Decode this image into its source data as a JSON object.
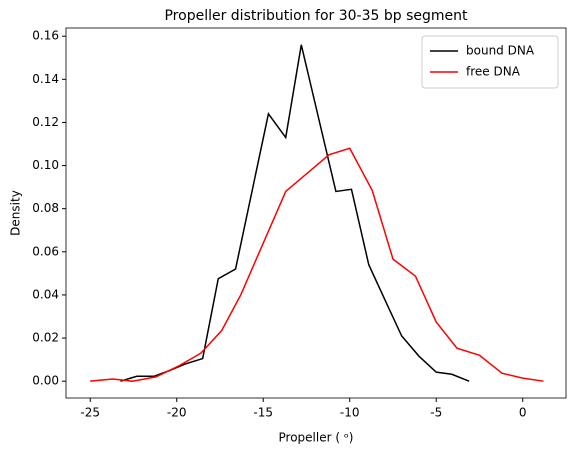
{
  "chart_data": {
    "type": "line",
    "title": "Propeller distribution for 30-35 bp segment",
    "xlabel": "Propeller ( ᵒ)",
    "ylabel": "Density",
    "xlim": [
      -26.4,
      2.5
    ],
    "ylim": [
      -0.0078,
      0.1638
    ],
    "xticks": [
      -25,
      -20,
      -15,
      -10,
      -5,
      0
    ],
    "yticks": [
      {
        "value": 0,
        "label": "0.00"
      },
      {
        "value": 0.02,
        "label": "0.02"
      },
      {
        "value": 0.04,
        "label": "0.04"
      },
      {
        "value": 0.06,
        "label": "0.06"
      },
      {
        "value": 0.08,
        "label": "0.08"
      },
      {
        "value": 0.1,
        "label": "0.10"
      },
      {
        "value": 0.12,
        "label": "0.12"
      },
      {
        "value": 0.14,
        "label": "0.14"
      },
      {
        "value": 0.16,
        "label": "0.16"
      }
    ],
    "legend": "upper right",
    "series": [
      {
        "name": "bound DNA",
        "color": "#000000",
        "x": [
          -23.25,
          -22.3,
          -21.3,
          -20.4,
          -19.5,
          -18.5,
          -17.6,
          -16.6,
          -14.7,
          -13.7,
          -12.8,
          -11.8,
          -10.8,
          -9.9,
          -8.9,
          -7.9,
          -7.0,
          -6.0,
          -5.0,
          -4.1,
          -3.1
        ],
        "values": [
          0,
          0.0023,
          0.0023,
          0.005,
          0.008,
          0.0105,
          0.0475,
          0.052,
          0.124,
          0.113,
          0.156,
          0.122,
          0.088,
          0.089,
          0.054,
          0.0366,
          0.021,
          0.0116,
          0.0042,
          0.0032,
          0
        ]
      },
      {
        "name": "free DNA",
        "color": "#ff0000",
        "x": [
          -25.0,
          -23.7,
          -22.55,
          -21.2,
          -19.9,
          -18.6,
          -17.4,
          -16.3,
          -15.0,
          -13.7,
          -11.2,
          -10.0,
          -8.7,
          -7.5,
          -6.2,
          -5.0,
          -3.8,
          -2.5,
          -1.2,
          0.0,
          1.2
        ],
        "values": [
          0,
          0.001,
          0,
          0.002,
          0.007,
          0.013,
          0.0235,
          0.04,
          0.064,
          0.088,
          0.105,
          0.108,
          0.0885,
          0.0566,
          0.0487,
          0.0274,
          0.0153,
          0.012,
          0.0037,
          0.0014,
          0
        ]
      }
    ]
  }
}
